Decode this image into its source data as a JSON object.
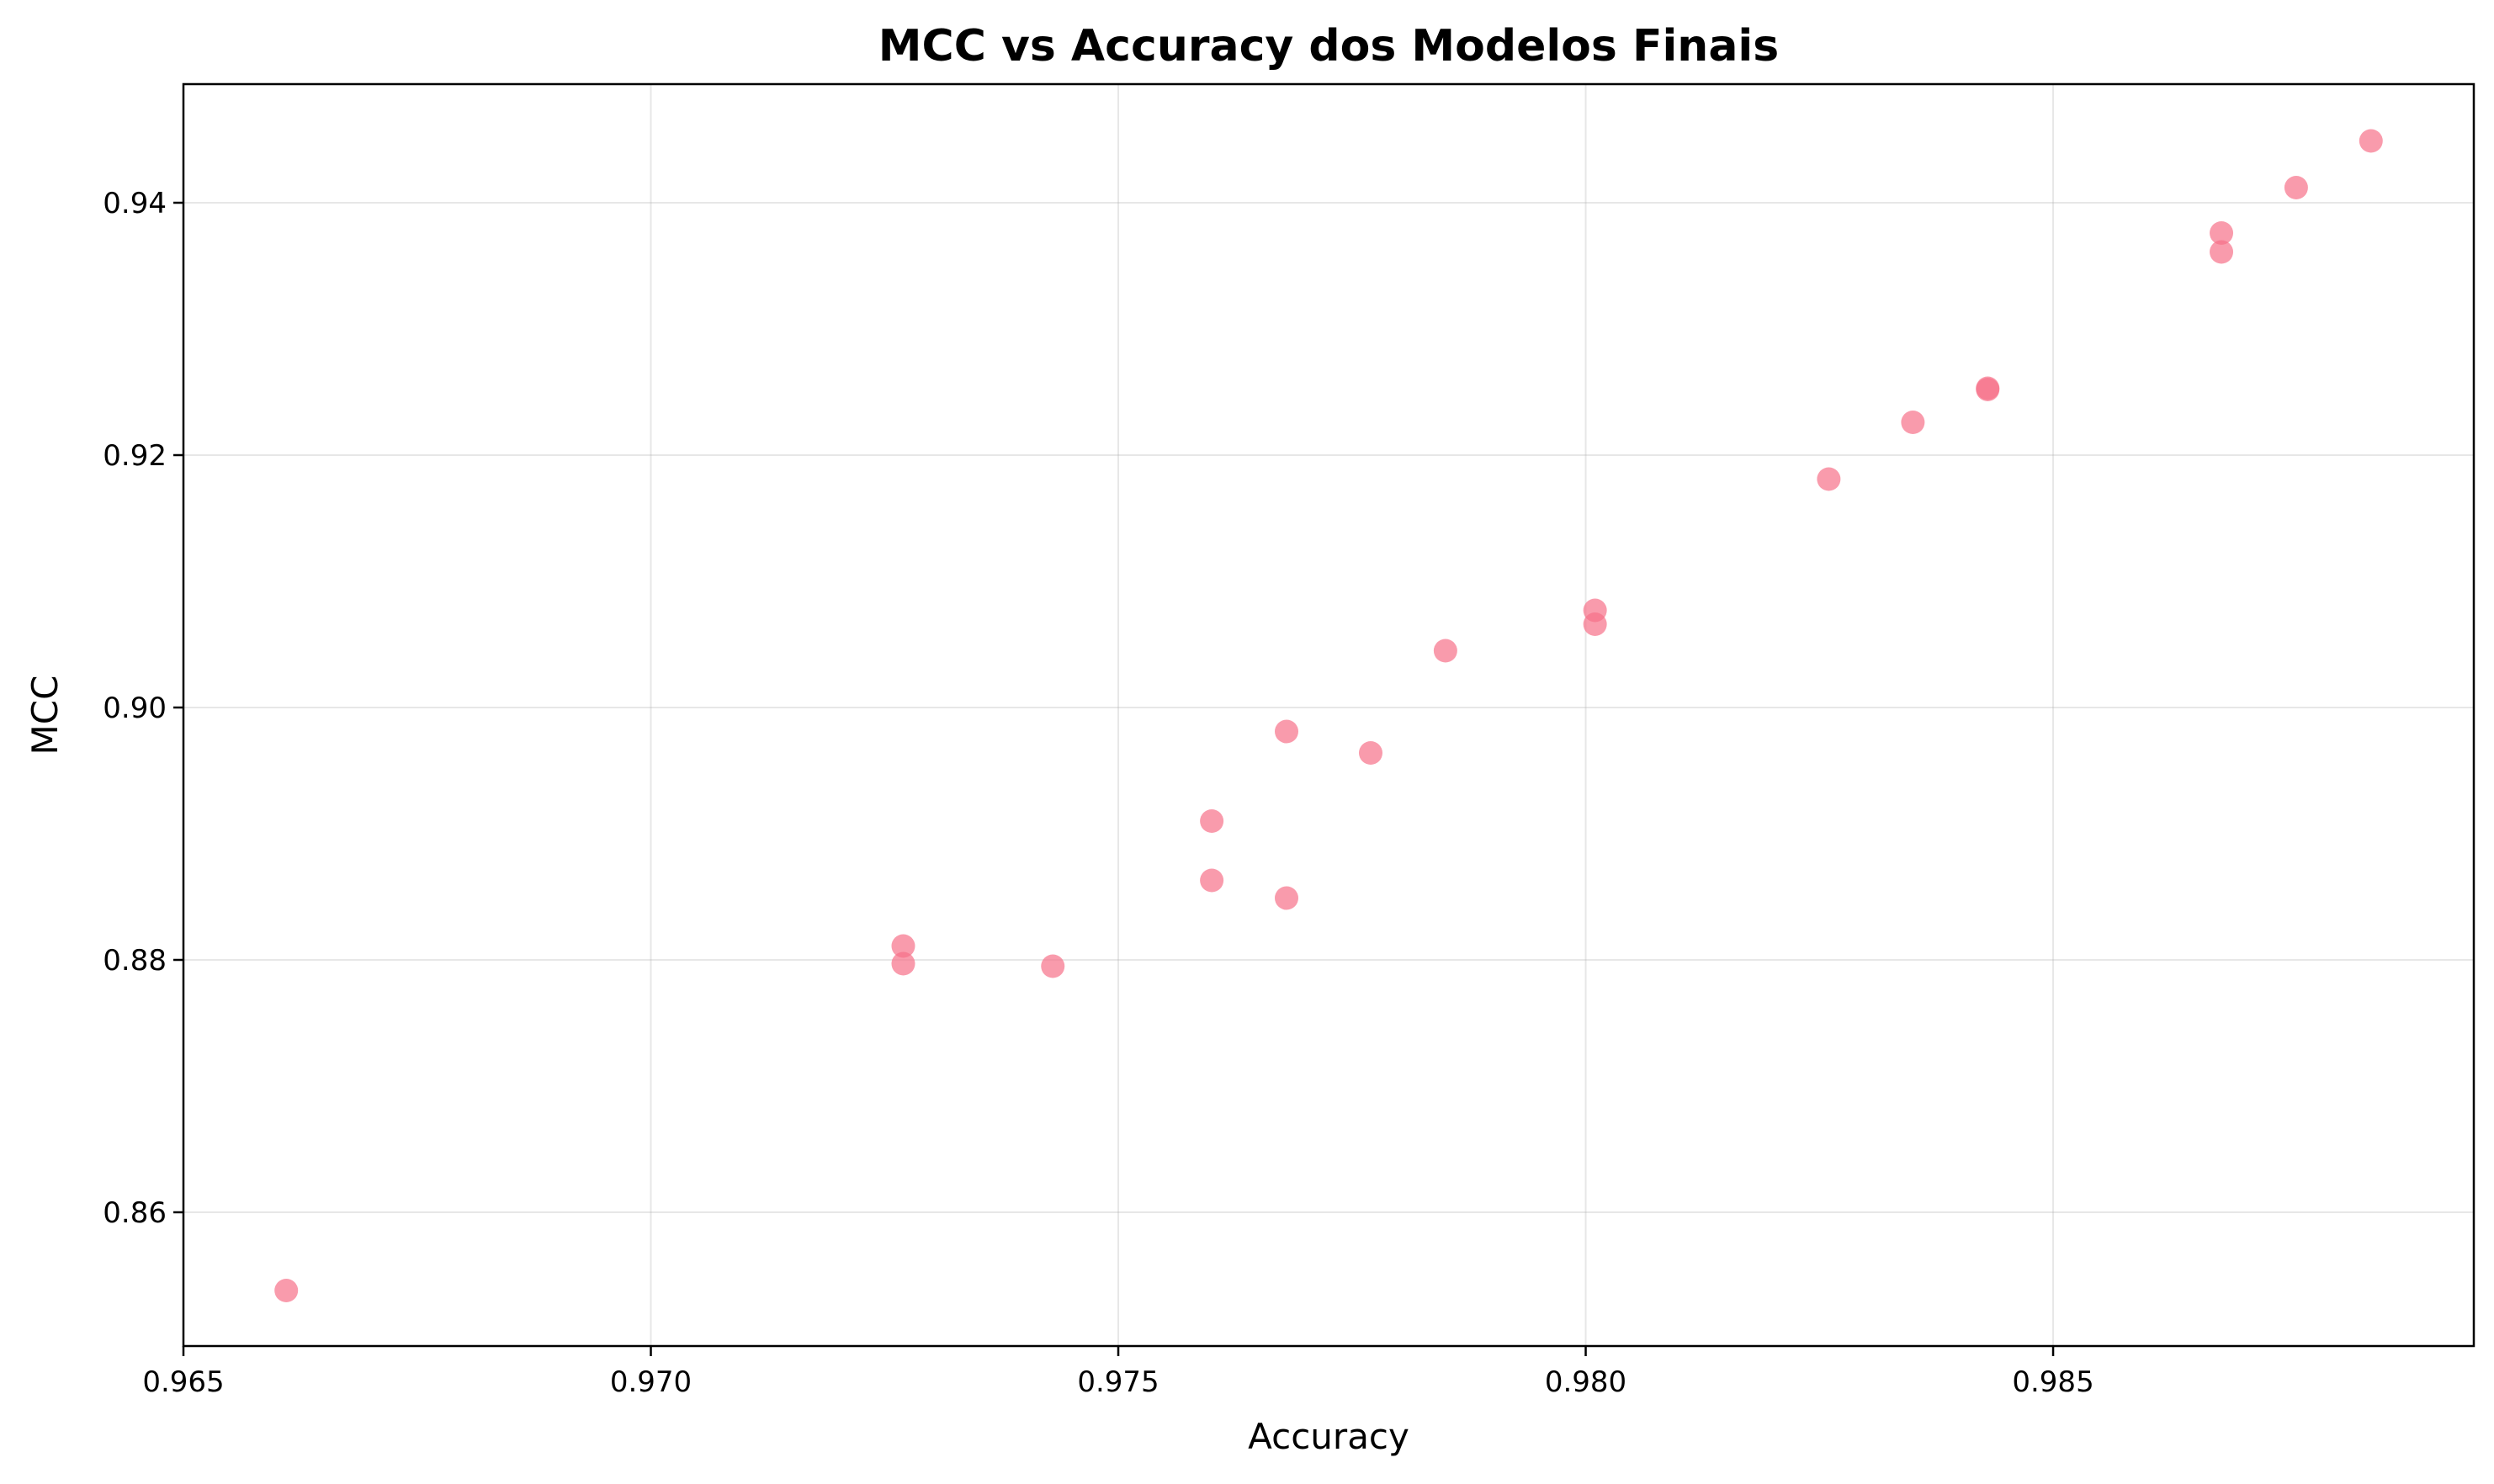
{
  "chart_data": {
    "type": "scatter",
    "title": "MCC vs Accuracy dos Modelos Finais",
    "xlabel": "Accuracy",
    "ylabel": "MCC",
    "xlim": [
      0.965,
      0.9895
    ],
    "ylim": [
      0.8494,
      0.9494
    ],
    "xticks": [
      0.965,
      0.97,
      0.975,
      0.98,
      0.985
    ],
    "xtick_labels": [
      "0.965",
      "0.970",
      "0.975",
      "0.980",
      "0.985"
    ],
    "yticks": [
      0.86,
      0.88,
      0.9,
      0.92,
      0.94
    ],
    "ytick_labels": [
      "0.86",
      "0.88",
      "0.90",
      "0.92",
      "0.94"
    ],
    "grid": true,
    "marker_color": "#f77189",
    "marker_opacity": 0.7,
    "points": [
      {
        "x": 0.9661,
        "y": 0.8538
      },
      {
        "x": 0.9727,
        "y": 0.8811
      },
      {
        "x": 0.9727,
        "y": 0.8797
      },
      {
        "x": 0.9743,
        "y": 0.8795
      },
      {
        "x": 0.976,
        "y": 0.891
      },
      {
        "x": 0.976,
        "y": 0.8863
      },
      {
        "x": 0.9768,
        "y": 0.8981
      },
      {
        "x": 0.9768,
        "y": 0.8849
      },
      {
        "x": 0.9777,
        "y": 0.8964
      },
      {
        "x": 0.9785,
        "y": 0.9045
      },
      {
        "x": 0.9801,
        "y": 0.9077
      },
      {
        "x": 0.9801,
        "y": 0.9066
      },
      {
        "x": 0.9826,
        "y": 0.9181
      },
      {
        "x": 0.9835,
        "y": 0.9226
      },
      {
        "x": 0.9843,
        "y": 0.9252
      },
      {
        "x": 0.9843,
        "y": 0.9253
      },
      {
        "x": 0.9868,
        "y": 0.9376
      },
      {
        "x": 0.9868,
        "y": 0.9361
      },
      {
        "x": 0.9876,
        "y": 0.9412
      },
      {
        "x": 0.9884,
        "y": 0.9449
      }
    ]
  }
}
